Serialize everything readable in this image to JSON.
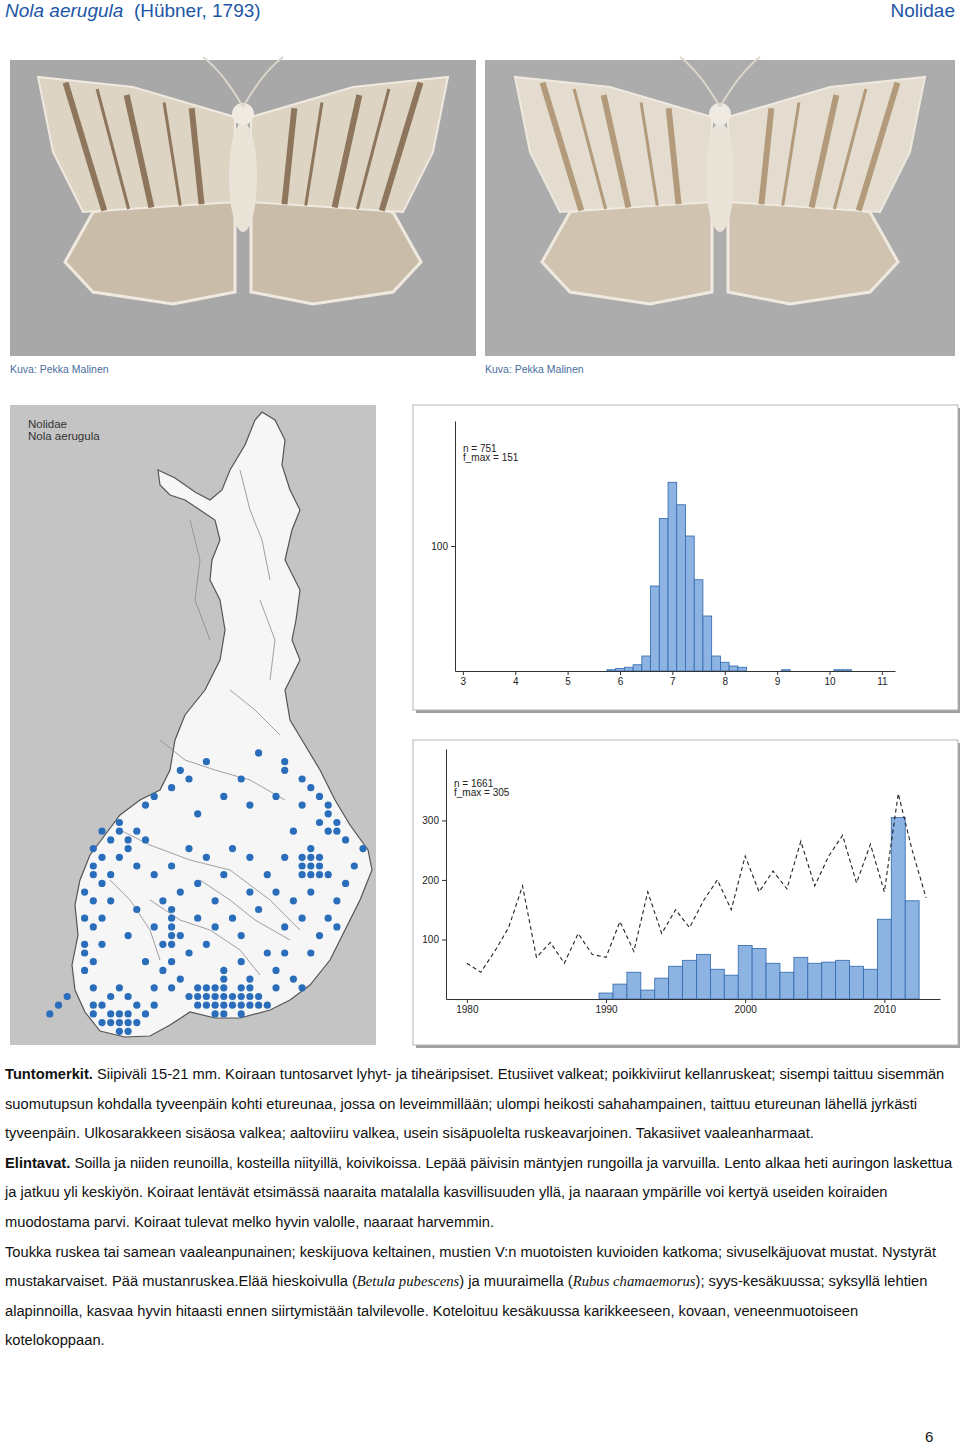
{
  "header": {
    "species": "Nola aerugula",
    "author": "(Hübner, 1793)",
    "family": "Nolidae"
  },
  "photos": [
    {
      "caption": "Kuva: Pekka Malinen"
    },
    {
      "caption": "Kuva: Pekka Malinen"
    }
  ],
  "map": {
    "title": [
      "Nolidae",
      "Nola aerugula"
    ],
    "records": [
      [
        21,
        4
      ],
      [
        22,
        4
      ],
      [
        23,
        4
      ],
      [
        24,
        4
      ],
      [
        25,
        4
      ],
      [
        26,
        4
      ],
      [
        27,
        4
      ],
      [
        28,
        4
      ],
      [
        29,
        4
      ],
      [
        20,
        5
      ],
      [
        21,
        5
      ],
      [
        22,
        5
      ],
      [
        23,
        5
      ],
      [
        24,
        5
      ],
      [
        25,
        5
      ],
      [
        26,
        5
      ],
      [
        27,
        5
      ],
      [
        28,
        5
      ],
      [
        21,
        6
      ],
      [
        22,
        6
      ],
      [
        23,
        6
      ],
      [
        24,
        6
      ],
      [
        26,
        6
      ],
      [
        27,
        6
      ],
      [
        23,
        3
      ],
      [
        24,
        3
      ],
      [
        26,
        3
      ],
      [
        24,
        7
      ],
      [
        27,
        7
      ],
      [
        12,
        1
      ],
      [
        13,
        1
      ],
      [
        10,
        2
      ],
      [
        11,
        2
      ],
      [
        12,
        2
      ],
      [
        13,
        2
      ],
      [
        14,
        2
      ],
      [
        9,
        3
      ],
      [
        11,
        3
      ],
      [
        12,
        3
      ],
      [
        13,
        3
      ],
      [
        15,
        3
      ],
      [
        9,
        4
      ],
      [
        10,
        4
      ],
      [
        14,
        4
      ],
      [
        16,
        4
      ],
      [
        11,
        5
      ],
      [
        13,
        5
      ],
      [
        9,
        6
      ],
      [
        12,
        6
      ],
      [
        5,
        4
      ],
      [
        6,
        5
      ],
      [
        4,
        3
      ],
      [
        8,
        8
      ],
      [
        9,
        9
      ],
      [
        8,
        10
      ],
      [
        8,
        11
      ],
      [
        10,
        11
      ],
      [
        9,
        13
      ],
      [
        8,
        14
      ],
      [
        10,
        14
      ],
      [
        9,
        16
      ],
      [
        11,
        16
      ],
      [
        8,
        17
      ],
      [
        10,
        18
      ],
      [
        9,
        19
      ],
      [
        11,
        19
      ],
      [
        9,
        20
      ],
      [
        10,
        21
      ],
      [
        12,
        21
      ],
      [
        9,
        22
      ],
      [
        11,
        23
      ],
      [
        10,
        24
      ],
      [
        12,
        24
      ],
      [
        13,
        22
      ],
      [
        14,
        20
      ],
      [
        13,
        23
      ],
      [
        14,
        24
      ],
      [
        15,
        23
      ],
      [
        12,
        25
      ],
      [
        15,
        9
      ],
      [
        17,
        11
      ],
      [
        16,
        13
      ],
      [
        18,
        9
      ],
      [
        19,
        12
      ],
      [
        20,
        10
      ],
      [
        21,
        14
      ],
      [
        22,
        11
      ],
      [
        23,
        13
      ],
      [
        17,
        16
      ],
      [
        19,
        17
      ],
      [
        21,
        18
      ],
      [
        23,
        16
      ],
      [
        24,
        19
      ],
      [
        25,
        14
      ],
      [
        26,
        12
      ],
      [
        27,
        17
      ],
      [
        28,
        15
      ],
      [
        29,
        19
      ],
      [
        18,
        20
      ],
      [
        16,
        19
      ],
      [
        14,
        15
      ],
      [
        13,
        12
      ],
      [
        20,
        22
      ],
      [
        22,
        21
      ],
      [
        25,
        22
      ],
      [
        27,
        21
      ],
      [
        24,
        8
      ],
      [
        26,
        9
      ],
      [
        19,
        7
      ],
      [
        17,
        8
      ],
      [
        16,
        6
      ],
      [
        18,
        6
      ],
      [
        30,
        8
      ],
      [
        31,
        10
      ],
      [
        32,
        7
      ],
      [
        29,
        10
      ],
      [
        30,
        6
      ],
      [
        33,
        6
      ],
      [
        18,
        11
      ],
      [
        18,
        12
      ],
      [
        18,
        13
      ],
      [
        18,
        14
      ],
      [
        18,
        15
      ],
      [
        34,
        10
      ],
      [
        35,
        12
      ],
      [
        36,
        14
      ],
      [
        37,
        16
      ],
      [
        38,
        18
      ],
      [
        39,
        20
      ],
      [
        40,
        22
      ],
      [
        36,
        19
      ],
      [
        34,
        17
      ],
      [
        35,
        21
      ],
      [
        33,
        14
      ],
      [
        37,
        13
      ],
      [
        38,
        23
      ],
      [
        37,
        24
      ],
      [
        36,
        24
      ],
      [
        34,
        22
      ],
      [
        33,
        19
      ],
      [
        32,
        16
      ],
      [
        31,
        13
      ],
      [
        30,
        17
      ],
      [
        31,
        21
      ],
      [
        32,
        24
      ],
      [
        35,
        25
      ],
      [
        36,
        26
      ],
      [
        37,
        25
      ],
      [
        36,
        27
      ],
      [
        33,
        20
      ],
      [
        34,
        20
      ],
      [
        34,
        19
      ],
      [
        35,
        19
      ],
      [
        33,
        21
      ],
      [
        34,
        21
      ],
      [
        35,
        20
      ],
      [
        16,
        28
      ],
      [
        15,
        27
      ],
      [
        18,
        29
      ],
      [
        21,
        26
      ],
      [
        24,
        28
      ],
      [
        27,
        27
      ],
      [
        30,
        28
      ],
      [
        33,
        27
      ],
      [
        34,
        29
      ],
      [
        33,
        30
      ],
      [
        35,
        28
      ],
      [
        19,
        31
      ],
      [
        26,
        30
      ],
      [
        31,
        31
      ],
      [
        20,
        30
      ],
      [
        22,
        32
      ],
      [
        28,
        33
      ],
      [
        31,
        32
      ]
    ]
  },
  "chart_data": [
    {
      "type": "histogram",
      "annotations": [
        "n = 751",
        "f_max = 151"
      ],
      "bins": [
        5.75,
        5.917,
        6.083,
        6.25,
        6.417,
        6.583,
        6.75,
        6.917,
        7.083,
        7.25,
        7.417,
        7.583,
        7.75,
        7.917,
        8.083,
        8.25,
        8.417,
        8.583,
        8.75,
        8.917,
        9.083,
        9.25,
        9.417,
        9.583,
        9.75,
        9.917,
        10.083,
        10.25,
        10.417
      ],
      "values": [
        1,
        2,
        3,
        5,
        12,
        68,
        122,
        151,
        133,
        108,
        73,
        44,
        12,
        7,
        4,
        3,
        0,
        0,
        0,
        0,
        1,
        0,
        0,
        0,
        0,
        0,
        1,
        1
      ],
      "color": "#8db3e2",
      "xlim": [
        2.85,
        11.25
      ],
      "xticks": [
        3,
        4,
        5,
        6,
        7,
        8,
        9,
        10,
        11
      ],
      "ylim": [
        0,
        200
      ],
      "yticks": [
        100
      ]
    },
    {
      "type": "bar",
      "annotations": [
        "n = 1661",
        "f_max = 305"
      ],
      "x": [
        1980,
        1981,
        1982,
        1983,
        1984,
        1985,
        1986,
        1987,
        1988,
        1989,
        1990,
        1991,
        1992,
        1993,
        1994,
        1995,
        1996,
        1997,
        1998,
        1999,
        2000,
        2001,
        2002,
        2003,
        2004,
        2005,
        2006,
        2007,
        2008,
        2009,
        2010,
        2011,
        2012,
        2013
      ],
      "series": [
        {
          "type": "bar",
          "color": "#8db3e2",
          "values": [
            null,
            null,
            null,
            null,
            null,
            null,
            null,
            null,
            null,
            null,
            10,
            25,
            45,
            15,
            35,
            55,
            65,
            75,
            50,
            40,
            90,
            85,
            60,
            45,
            70,
            60,
            62,
            65,
            55,
            50,
            134,
            305,
            165,
            null
          ]
        },
        {
          "type": "line",
          "color": "#222222",
          "line_style": "dashed",
          "values": [
            60,
            45,
            80,
            120,
            190,
            70,
            95,
            60,
            110,
            75,
            70,
            130,
            80,
            180,
            110,
            150,
            120,
            165,
            200,
            150,
            240,
            180,
            215,
            185,
            265,
            190,
            240,
            275,
            195,
            260,
            180,
            345,
            250,
            170
          ]
        }
      ],
      "xlim": [
        1978.5,
        2014
      ],
      "xticks": [
        1980,
        1990,
        2000,
        2010
      ],
      "ylim": [
        0,
        420
      ],
      "yticks": [
        100,
        200,
        300
      ]
    }
  ],
  "text": [
    [
      {
        "bold": "Tuntomerkit."
      },
      {
        "text": " Siipiväli 15-21 mm. Koiraan tuntosarvet lyhyt- ja tiheäripsiset. Etusiivet valkeat; poikkiviirut kellanruskeat; sisempi taittuu sisemmän suomutupsun kohdalla tyveenpäin kohti etureunaa, jossa on leveimmillään; ulompi heikosti sahahampainen, taittuu etureunan lähellä jyrkästi tyveenpäin. Ulkosarakkeen sisäosa valkea; aaltoviiru valkea, usein sisäpuolelta ruskeavarjoinen. Takasiivet vaaleanharmaat."
      }
    ],
    [
      {
        "bold": "Elintavat."
      },
      {
        "text": " Soilla ja niiden reunoilla, kosteilla niityillä, koivikoissa. Lepää päivisin mäntyjen rungoilla ja varvuilla. Lento alkaa heti auringon laskettua ja jatkuu yli keskiyön. Koiraat lentävät etsimässä naaraita matalalla kasvillisuuden yllä, ja naaraan ympärille voi kertyä useiden koiraiden muodostama parvi. Koiraat tulevat melko hyvin valolle, naaraat harvemmin."
      }
    ],
    [
      {
        "text": "Toukka ruskea tai samean vaaleanpunainen; keskijuova keltainen, mustien V:n muotoisten kuvioiden katkoma; sivuselkäjuovat mustat. Nystyrät mustakarvaiset. Pää mustanruskea.Elää hieskoivulla ("
      },
      {
        "italic": "Betula pubescens"
      },
      {
        "text": ") ja muuraimella ("
      },
      {
        "italic": "Rubus chamaemorus"
      },
      {
        "text": "); syys-kesäkuussa; syksyllä lehtien alapinnoilla, kasvaa hyvin hitaasti ennen siirtymistään talvilevolle. Koteloituu kesäkuussa karikkeeseen, kovaan, veneenmuotoiseen kotelokoppaan."
      }
    ]
  ],
  "page_number": 6
}
